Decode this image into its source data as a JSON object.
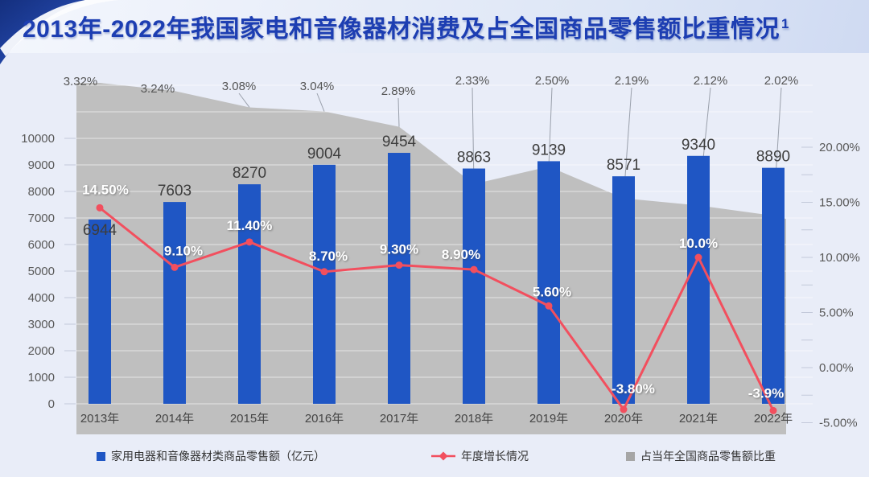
{
  "header": {
    "title": "2013年-2022年我国家电和音像器材消费及占全国商品零售额比重情况",
    "title_superscript": "1"
  },
  "chart_data": {
    "type": "combo",
    "title": "2013年-2022年我国家电和音像器材消费及占全国商品零售额比重情况",
    "categories": [
      "2013年",
      "2014年",
      "2015年",
      "2016年",
      "2017年",
      "2018年",
      "2019年",
      "2020年",
      "2021年",
      "2022年"
    ],
    "series": [
      {
        "name": "家用电器和音像器材类商品零售额（亿元）",
        "type": "bar",
        "axis": "left",
        "color": "#1f56c4",
        "values": [
          6944,
          7603,
          8270,
          9004,
          9454,
          8863,
          9139,
          8571,
          9340,
          8890
        ],
        "labels": [
          "6944",
          "7603",
          "8270",
          "9004",
          "9454",
          "8863",
          "9139",
          "8571",
          "9340",
          "8890"
        ]
      },
      {
        "name": "年度增长情况",
        "type": "line",
        "axis": "right",
        "color": "#f24f5e",
        "values": [
          14.5,
          9.1,
          11.4,
          8.7,
          9.3,
          8.9,
          5.6,
          -3.8,
          10.0,
          -3.9
        ],
        "labels": [
          "14.50%",
          "9.10%",
          "11.40%",
          "8.70%",
          "9.30%",
          "8.90%",
          "5.60%",
          "-3.80%",
          "10.0%",
          "-3.9%"
        ]
      },
      {
        "name": "占当年全国商品零售额比重",
        "type": "area",
        "axis": "hidden",
        "color": "#bfbfbf",
        "values": [
          3.32,
          3.24,
          3.08,
          3.04,
          2.89,
          2.33,
          2.5,
          2.19,
          2.12,
          2.02
        ],
        "labels": [
          "3.32%",
          "3.24%",
          "3.08%",
          "3.04%",
          "2.89%",
          "2.33%",
          "2.50%",
          "2.19%",
          "2.12%",
          "2.02%"
        ]
      }
    ],
    "left_axis": {
      "min": 0,
      "max": 10000,
      "step": 1000,
      "tick_labels": [
        "0",
        "1000",
        "2000",
        "3000",
        "4000",
        "5000",
        "6000",
        "7000",
        "8000",
        "9000",
        "10000"
      ]
    },
    "right_axis": {
      "min": -5,
      "max": 20,
      "step": 5,
      "tick_labels": [
        "-5.00%",
        "0.00%",
        "5.00%",
        "10.00%",
        "15.00%",
        "20.00%"
      ]
    },
    "grid": true,
    "legend_position": "bottom"
  },
  "legend": {
    "items": [
      {
        "label": "家用电器和音像器材类商品零售额（亿元）",
        "marker": "square",
        "color": "#1f56c4"
      },
      {
        "label": "年度增长情况",
        "marker": "line-diamond",
        "color": "#f24f5e"
      },
      {
        "label": "占当年全国商品零售额比重",
        "marker": "square",
        "color": "#a6a6a6"
      }
    ]
  },
  "colors": {
    "background": "#e9edf8",
    "banner_title": "#1d3eb2",
    "bar": "#1f56c4",
    "line": "#f24f5e",
    "area": "#bfbfbf",
    "axis_text": "#595959"
  }
}
